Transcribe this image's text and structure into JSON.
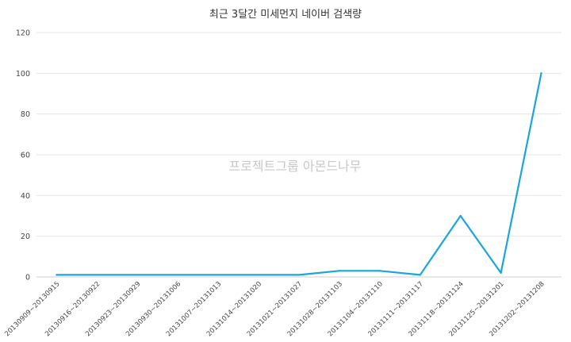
{
  "chart_data": {
    "type": "line",
    "title": "최근 3달간 미세먼지 네이버 검색량",
    "watermark": "프로젝트그룹 아몬드나무",
    "categories": [
      "20130909~20130915",
      "20130916~20130922",
      "20130923~20130929",
      "20130930~20131006",
      "20131007~20131013",
      "20131014~20131020",
      "20131021~20131027",
      "20131028~20131103",
      "20131104~20131110",
      "20131111~20131117",
      "20131118~20131124",
      "20131125~20131201",
      "20131202~20131208"
    ],
    "series": [
      {
        "values": [
          1,
          1,
          1,
          1,
          1,
          1,
          1,
          3,
          3,
          1,
          30,
          2,
          100
        ]
      }
    ],
    "ylim": [
      0,
      120
    ],
    "yticks": [
      0,
      20,
      40,
      60,
      80,
      100,
      120
    ],
    "grid": true,
    "colors": {
      "line": "#1aa6dd",
      "grid": "#e6e6e6"
    }
  }
}
